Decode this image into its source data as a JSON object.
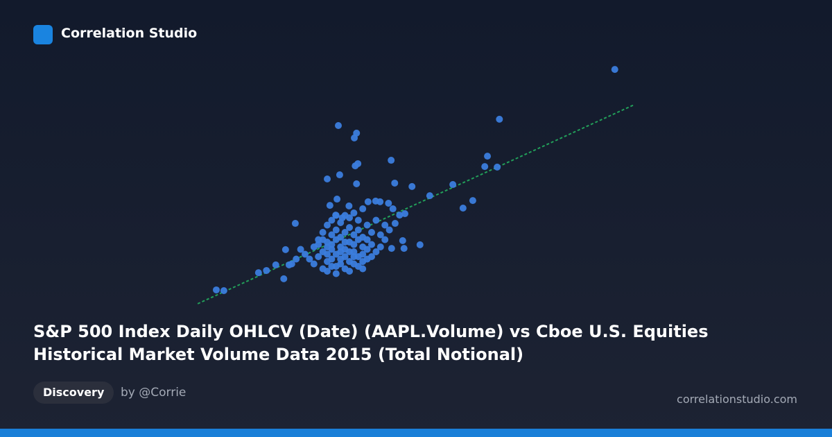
{
  "brand": "Correlation Studio",
  "chart_data": {
    "type": "scatter",
    "x": [
      94.8,
      68.8,
      32.5,
      36.6,
      36.1,
      66.1,
      44.4,
      65.5,
      68.3,
      36.9,
      36.3,
      32.8,
      30.0,
      36.6,
      45.2,
      49.1,
      58.3,
      53.1,
      62.8,
      60.6,
      5.0,
      6.7,
      14.5,
      16.3,
      18.4,
      20.2,
      21.4,
      22.8,
      20.6,
      50.9,
      47.3,
      47.0,
      44.5,
      41.9,
      39.2,
      40.9,
      43.8,
      44.8,
      47.5,
      46.3,
      45.3,
      38.0,
      34.9,
      32.2,
      30.6,
      33.4,
      31.9,
      28,
      29,
      30,
      31,
      32,
      33,
      34,
      35,
      36,
      37,
      38,
      39,
      40,
      41,
      30,
      31,
      32,
      33,
      34,
      35,
      36,
      37,
      38,
      39,
      40,
      29,
      30,
      31,
      32,
      33,
      34,
      35,
      36,
      37,
      38,
      39,
      27,
      26,
      25,
      24,
      27,
      28,
      29,
      30,
      31,
      33,
      35,
      37,
      42,
      43,
      44,
      41,
      36,
      34,
      32,
      28,
      29,
      30,
      31,
      33,
      34,
      35,
      36,
      37,
      38,
      39,
      40,
      32,
      33,
      35,
      31,
      30,
      32,
      34,
      36,
      38,
      23,
      22,
      42,
      43
    ],
    "y": [
      97.1,
      76.6,
      74.0,
      70.9,
      68.9,
      61.4,
      59.7,
      57.1,
      56.9,
      58.3,
      57.4,
      53.7,
      52.0,
      50.0,
      50.3,
      48.9,
      49.7,
      45.1,
      43.1,
      40.0,
      6.3,
      6.0,
      13.4,
      14.3,
      16.6,
      10.9,
      16.6,
      33.7,
      22.9,
      24.9,
      23.4,
      26.6,
      23.4,
      42.6,
      42.6,
      42.9,
      42.0,
      39.7,
      37.7,
      37.1,
      33.7,
      39.7,
      40.9,
      43.7,
      41.1,
      36.0,
      37.1,
      20,
      22,
      18,
      25,
      21,
      19,
      23,
      26,
      22,
      20,
      24,
      27,
      25,
      22,
      26,
      29,
      31,
      28,
      30,
      32,
      29,
      31,
      28,
      33,
      30,
      15,
      14,
      16,
      13,
      17,
      15,
      14,
      17,
      16,
      18,
      19,
      17,
      19,
      21,
      23,
      24,
      27,
      30,
      33,
      35,
      34,
      36,
      35,
      29,
      27,
      31,
      35,
      38,
      37,
      37,
      25,
      27,
      21,
      19,
      24,
      20,
      18,
      25,
      27,
      21,
      23,
      20,
      16,
      22,
      22,
      23,
      24,
      27,
      26,
      20,
      15,
      19,
      17,
      24,
      33
    ],
    "xlim": [
      0,
      100
    ],
    "ylim": [
      0,
      100
    ],
    "color": "#3b7ddd",
    "trendline": {
      "x": [
        0.8,
        99.2
      ],
      "y": [
        0.6,
        82.6
      ],
      "color": "#22a05a"
    }
  },
  "title": "S&P 500 Index Daily OHLCV (Date) (AAPL.Volume) vs Cboe U.S. Equities Historical Market Volume Data 2015 (Total Notional)",
  "tag": "Discovery",
  "author": "by @Corrie",
  "site": "correlationstudio.com"
}
